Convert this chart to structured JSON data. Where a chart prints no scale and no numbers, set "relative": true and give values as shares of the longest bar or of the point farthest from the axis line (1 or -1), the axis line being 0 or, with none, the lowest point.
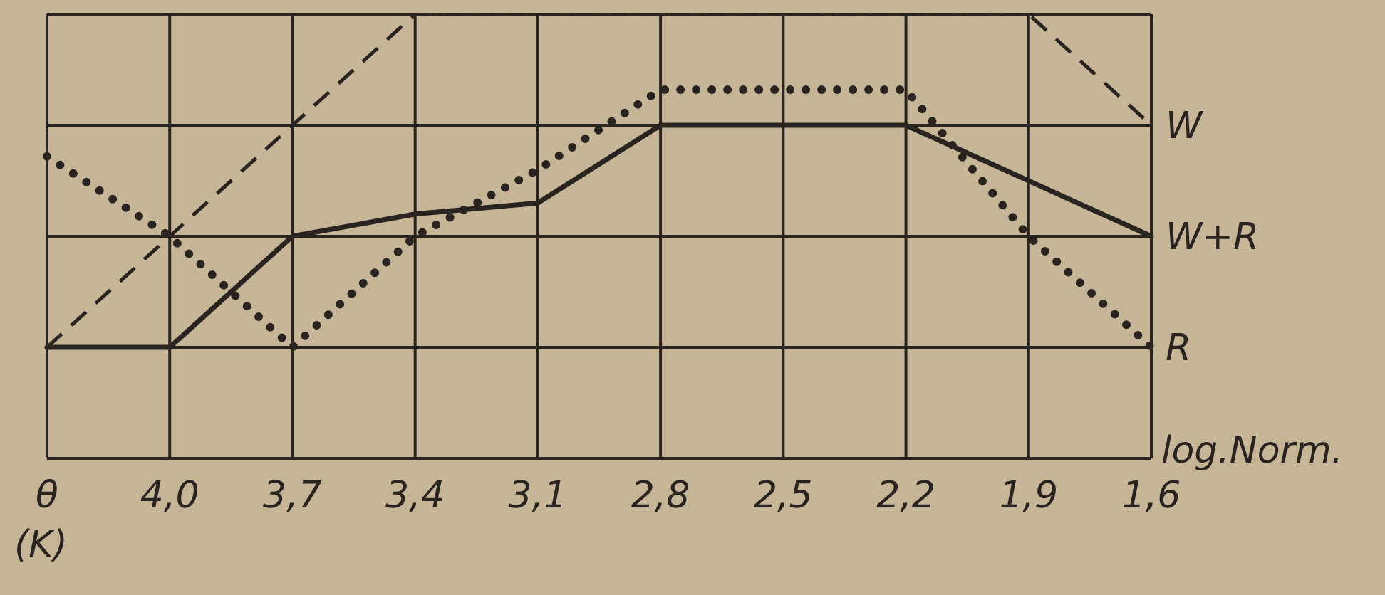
{
  "chart_data": {
    "type": "line",
    "relative": true,
    "xlabel": "(K)",
    "categories": [
      "θ",
      "4,0",
      "3,7",
      "3,4",
      "3,1",
      "2,8",
      "2,5",
      "2,2",
      "1,9",
      "1,6"
    ],
    "series": [
      {
        "color": "#2a2420",
        "line_style": "solid",
        "values": [
          0.25,
          0.25,
          0.5,
          0.55,
          0.575,
          0.75,
          0.75,
          0.75,
          0.625,
          0.5
        ]
      },
      {
        "color": "#2a2420",
        "line_style": "dotted",
        "values": [
          0.68,
          0.5,
          0.25,
          0.5,
          0.65,
          0.83,
          0.83,
          0.83,
          0.5,
          0.25
        ]
      },
      {
        "color": "#2a2420",
        "line_style": "dashed",
        "values": [
          0.25,
          0.5,
          0.75,
          1,
          1,
          1,
          1,
          1,
          1,
          0.75
        ]
      }
    ],
    "annotations": [
      {
        "text": "W",
        "x": "1,6",
        "y": 0.75
      },
      {
        "text": "W+R",
        "x": "1,6",
        "y": 0.5
      },
      {
        "text": "R",
        "x": "1,6",
        "y": 0.25
      },
      "log.Norm."
    ],
    "grid": true,
    "marker": "none",
    "legend": false
  }
}
